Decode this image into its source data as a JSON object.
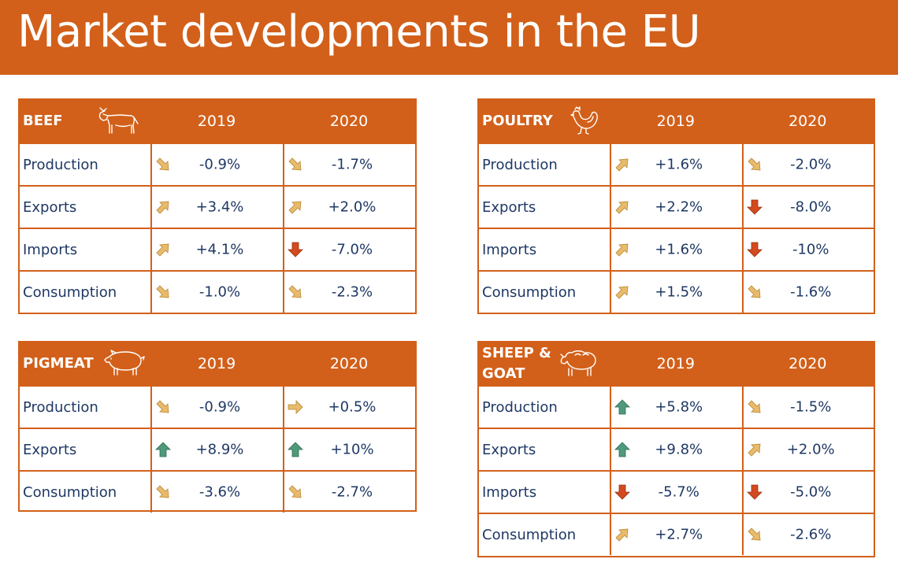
{
  "title": "Market developments in the EU",
  "colors": {
    "orange": "#d2601a",
    "text": "#1f3864",
    "arrow_pale": "#e8bb6c",
    "arrow_red": "#d24a1e",
    "arrow_green": "#4f9a7a"
  },
  "beef": {
    "name": "BEEF",
    "icon": "cow-icon",
    "y2019": "2019",
    "y2020": "2020",
    "rows": [
      {
        "label": "Production",
        "v2019": "-0.9%",
        "a2019": "down-right",
        "v2020": "-1.7%",
        "a2020": "down-right"
      },
      {
        "label": "Exports",
        "v2019": "+3.4%",
        "a2019": "up-right",
        "v2020": "+2.0%",
        "a2020": "up-right"
      },
      {
        "label": "Imports",
        "v2019": "+4.1%",
        "a2019": "up-right",
        "v2020": "-7.0%",
        "a2020": "down-strong"
      },
      {
        "label": "Consumption",
        "v2019": "-1.0%",
        "a2019": "down-right",
        "v2020": "-2.3%",
        "a2020": "down-right"
      }
    ]
  },
  "poultry": {
    "name": "POULTRY",
    "icon": "chicken-icon",
    "y2019": "2019",
    "y2020": "2020",
    "rows": [
      {
        "label": "Production",
        "v2019": "+1.6%",
        "a2019": "up-right",
        "v2020": "-2.0%",
        "a2020": "down-right"
      },
      {
        "label": "Exports",
        "v2019": "+2.2%",
        "a2019": "up-right",
        "v2020": "-8.0%",
        "a2020": "down-strong"
      },
      {
        "label": "Imports",
        "v2019": "+1.6%",
        "a2019": "up-right",
        "v2020": "-10%",
        "a2020": "down-strong"
      },
      {
        "label": "Consumption",
        "v2019": "+1.5%",
        "a2019": "up-right",
        "v2020": "-1.6%",
        "a2020": "down-right"
      }
    ]
  },
  "pigmeat": {
    "name": "PIGMEAT",
    "icon": "pig-icon",
    "y2019": "2019",
    "y2020": "2020",
    "rows": [
      {
        "label": "Production",
        "v2019": "-0.9%",
        "a2019": "down-right",
        "v2020": "+0.5%",
        "a2020": "right"
      },
      {
        "label": "Exports",
        "v2019": "+8.9%",
        "a2019": "up-strong",
        "v2020": "+10%",
        "a2020": "up-strong"
      },
      {
        "label": "Consumption",
        "v2019": "-3.6%",
        "a2019": "down-right",
        "v2020": "-2.7%",
        "a2020": "down-right"
      }
    ]
  },
  "sheep": {
    "name_line1": "SHEEP &",
    "name_line2": "GOAT",
    "icon": "sheep-icon",
    "y2019": "2019",
    "y2020": "2020",
    "rows": [
      {
        "label": "Production",
        "v2019": "+5.8%",
        "a2019": "up-strong",
        "v2020": "-1.5%",
        "a2020": "down-right"
      },
      {
        "label": "Exports",
        "v2019": "+9.8%",
        "a2019": "up-strong",
        "v2020": "+2.0%",
        "a2020": "up-right"
      },
      {
        "label": "Imports",
        "v2019": "-5.7%",
        "a2019": "down-strong",
        "v2020": "-5.0%",
        "a2020": "down-strong"
      },
      {
        "label": "Consumption",
        "v2019": "+2.7%",
        "a2019": "up-right",
        "v2020": "-2.6%",
        "a2020": "down-right"
      }
    ]
  }
}
